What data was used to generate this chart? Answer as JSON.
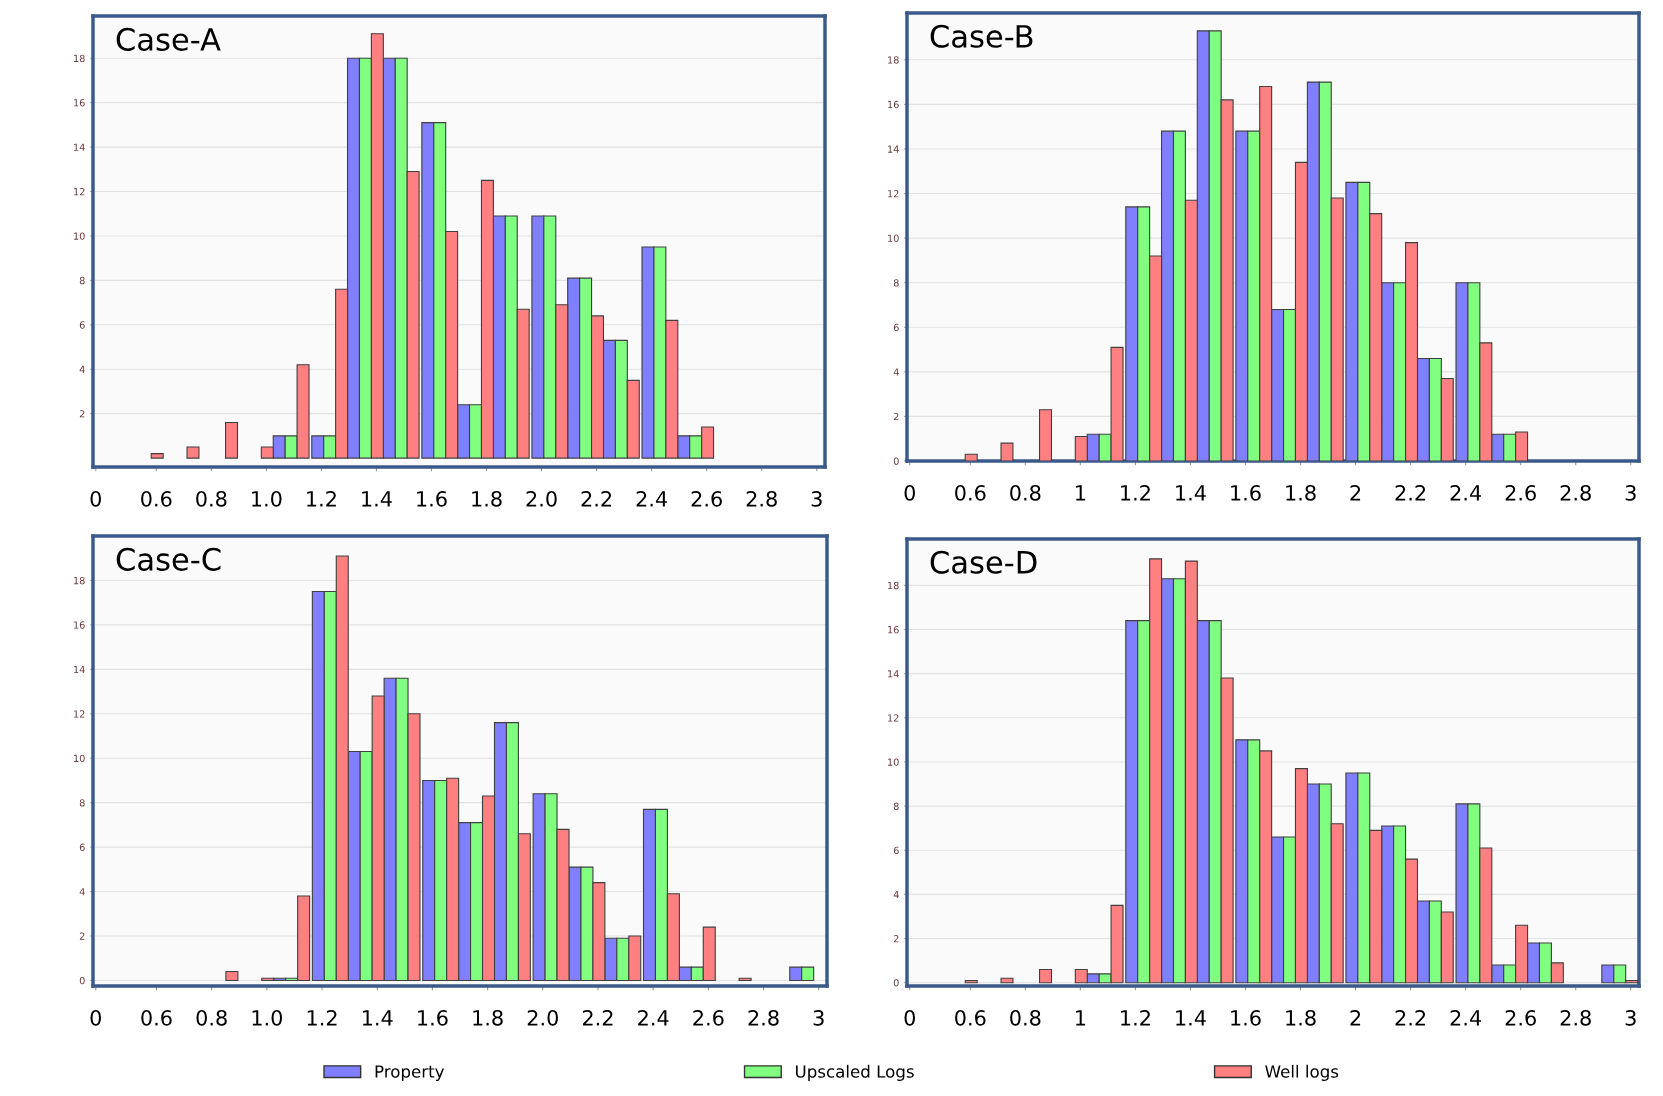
{
  "chart_data": [
    {
      "type": "bar",
      "title": "Case-A",
      "x": [
        0.56,
        0.69,
        0.83,
        0.96,
        1.09,
        1.23,
        1.36,
        1.49,
        1.63,
        1.76,
        1.89,
        2.03,
        2.16,
        2.29,
        2.43,
        2.56
      ],
      "xlim": [
        0.37,
        3.03
      ],
      "xticks": [
        {
          "value": 0.38,
          "label": "0"
        },
        {
          "value": 0.6,
          "label": "0.6"
        },
        {
          "value": 0.8,
          "label": "0.8"
        },
        {
          "value": 1.0,
          "label": "1.0"
        },
        {
          "value": 1.2,
          "label": "1.2"
        },
        {
          "value": 1.4,
          "label": "1.4"
        },
        {
          "value": 1.6,
          "label": "1.6"
        },
        {
          "value": 1.8,
          "label": "1.8"
        },
        {
          "value": 2.0,
          "label": "2.0"
        },
        {
          "value": 2.2,
          "label": "2.2"
        },
        {
          "value": 2.4,
          "label": "2.4"
        },
        {
          "value": 2.6,
          "label": "2.6"
        },
        {
          "value": 2.8,
          "label": "2.8"
        },
        3
      ],
      "ylim": [
        -0.4,
        19.9
      ],
      "yticks": [
        2,
        4,
        6,
        8,
        10,
        12,
        14,
        16,
        18
      ],
      "grid": "y",
      "legend": "bottom",
      "series": [
        {
          "name": "Property",
          "color": "#7f7fff",
          "values": [
            null,
            null,
            null,
            null,
            1.0,
            1.0,
            18,
            18,
            15.1,
            2.4,
            10.9,
            10.9,
            8.1,
            5.3,
            9.5,
            1.0
          ]
        },
        {
          "name": "Upscaled Logs",
          "color": "#80ff80",
          "values": [
            null,
            null,
            null,
            null,
            1.0,
            1.0,
            18,
            18,
            15.1,
            2.4,
            10.9,
            10.9,
            8.1,
            5.3,
            9.5,
            1.0
          ]
        },
        {
          "name": "Well logs",
          "color": "#ff8080",
          "values": [
            0.2,
            0.5,
            1.6,
            0.5,
            4.2,
            7.6,
            19.1,
            12.9,
            10.2,
            12.5,
            6.7,
            6.9,
            6.4,
            3.5,
            6.2,
            1.4
          ]
        }
      ]
    },
    {
      "type": "bar",
      "title": "Case-B",
      "x": [
        0.56,
        0.69,
        0.83,
        0.96,
        1.09,
        1.23,
        1.36,
        1.49,
        1.63,
        1.76,
        1.89,
        2.03,
        2.16,
        2.29,
        2.43,
        2.56
      ],
      "xlim": [
        0.37,
        3.03
      ],
      "xticks": [
        {
          "value": 0.38,
          "label": "0"
        },
        {
          "value": 0.6,
          "label": "0.6"
        },
        {
          "value": 0.8,
          "label": "0.8"
        },
        1,
        {
          "value": 1.2,
          "label": "1.2"
        },
        {
          "value": 1.4,
          "label": "1.4"
        },
        {
          "value": 1.6,
          "label": "1.6"
        },
        {
          "value": 1.8,
          "label": "1.8"
        },
        2,
        {
          "value": 2.2,
          "label": "2.2"
        },
        {
          "value": 2.4,
          "label": "2.4"
        },
        {
          "value": 2.6,
          "label": "2.6"
        },
        {
          "value": 2.8,
          "label": "2.8"
        },
        3
      ],
      "ylim": [
        0,
        20.1
      ],
      "yticks": [
        0,
        2,
        4,
        6,
        8,
        10,
        12,
        14,
        16,
        18
      ],
      "grid": "y",
      "series": [
        {
          "color": "#7f7fff",
          "values": [
            null,
            null,
            null,
            null,
            1.2,
            11.4,
            14.8,
            19.3,
            14.8,
            6.8,
            17.0,
            12.5,
            8.0,
            4.6,
            8.0,
            1.2
          ]
        },
        {
          "color": "#80ff80",
          "values": [
            null,
            null,
            null,
            null,
            1.2,
            11.4,
            14.8,
            19.3,
            14.8,
            6.8,
            17.0,
            12.5,
            8.0,
            4.6,
            8.0,
            1.2
          ]
        },
        {
          "color": "#ff8080",
          "values": [
            0.3,
            0.8,
            2.3,
            1.1,
            5.1,
            9.2,
            11.7,
            16.2,
            16.8,
            13.4,
            11.8,
            11.1,
            9.8,
            3.7,
            5.3,
            1.3
          ]
        }
      ]
    },
    {
      "type": "bar",
      "title": "Case-C",
      "x": [
        0.83,
        0.96,
        1.09,
        1.23,
        1.36,
        1.49,
        1.63,
        1.76,
        1.89,
        2.03,
        2.16,
        2.29,
        2.43,
        2.56,
        2.69,
        2.96
      ],
      "xlim": [
        0.37,
        3.03
      ],
      "xticks": [
        {
          "value": 0.38,
          "label": "0"
        },
        {
          "value": 0.6,
          "label": "0.6"
        },
        {
          "value": 0.8,
          "label": "0.8"
        },
        {
          "value": 1.0,
          "label": "1.0"
        },
        {
          "value": 1.2,
          "label": "1.2"
        },
        {
          "value": 1.4,
          "label": "1.4"
        },
        {
          "value": 1.6,
          "label": "1.6"
        },
        {
          "value": 1.8,
          "label": "1.8"
        },
        {
          "value": 2.0,
          "label": "2.0"
        },
        {
          "value": 2.2,
          "label": "2.2"
        },
        {
          "value": 2.4,
          "label": "2.4"
        },
        {
          "value": 2.6,
          "label": "2.6"
        },
        {
          "value": 2.8,
          "label": "2.8"
        },
        3
      ],
      "ylim": [
        -0.25,
        20.0
      ],
      "yticks": [
        0,
        2,
        4,
        6,
        8,
        10,
        12,
        14,
        16,
        18
      ],
      "grid": "y",
      "series": [
        {
          "color": "#7f7fff",
          "values": [
            null,
            null,
            0.1,
            17.5,
            10.3,
            13.6,
            9.0,
            7.1,
            11.6,
            8.4,
            5.1,
            1.9,
            7.7,
            0.6,
            null,
            0.6
          ]
        },
        {
          "color": "#80ff80",
          "values": [
            null,
            null,
            0.1,
            17.5,
            10.3,
            13.6,
            9.0,
            7.1,
            11.6,
            8.4,
            5.1,
            1.9,
            7.7,
            0.6,
            null,
            0.6
          ]
        },
        {
          "color": "#ff8080",
          "values": [
            0.4,
            0.1,
            3.8,
            19.1,
            12.8,
            12.0,
            9.1,
            8.3,
            6.6,
            6.8,
            4.4,
            2.0,
            3.9,
            2.4,
            0.1,
            null
          ]
        }
      ]
    },
    {
      "type": "bar",
      "title": "Case-D",
      "x": [
        0.56,
        0.69,
        0.83,
        0.96,
        1.09,
        1.23,
        1.36,
        1.49,
        1.63,
        1.76,
        1.89,
        2.03,
        2.16,
        2.29,
        2.43,
        2.56,
        2.69,
        2.96
      ],
      "xlim": [
        0.37,
        3.03
      ],
      "xticks": [
        {
          "value": 0.38,
          "label": "0"
        },
        {
          "value": 0.6,
          "label": "0.6"
        },
        {
          "value": 0.8,
          "label": "0.8"
        },
        1,
        {
          "value": 1.2,
          "label": "1.2"
        },
        {
          "value": 1.4,
          "label": "1.4"
        },
        {
          "value": 1.6,
          "label": "1.6"
        },
        {
          "value": 1.8,
          "label": "1.8"
        },
        2,
        {
          "value": 2.2,
          "label": "2.2"
        },
        {
          "value": 2.4,
          "label": "2.4"
        },
        {
          "value": 2.6,
          "label": "2.6"
        },
        {
          "value": 2.8,
          "label": "2.8"
        },
        3
      ],
      "ylim": [
        -0.15,
        20.1
      ],
      "yticks": [
        0,
        2,
        4,
        6,
        8,
        10,
        12,
        14,
        16,
        18
      ],
      "grid": "y",
      "series": [
        {
          "color": "#7f7fff",
          "values": [
            null,
            null,
            null,
            null,
            0.4,
            16.4,
            18.3,
            16.4,
            11.0,
            6.6,
            9.0,
            9.5,
            7.1,
            3.7,
            8.1,
            0.8,
            1.8,
            0.8
          ]
        },
        {
          "color": "#80ff80",
          "values": [
            null,
            null,
            null,
            null,
            0.4,
            16.4,
            18.3,
            16.4,
            11.0,
            6.6,
            9.0,
            9.5,
            7.1,
            3.7,
            8.1,
            0.8,
            1.8,
            0.8
          ]
        },
        {
          "color": "#ff8080",
          "values": [
            0.1,
            0.2,
            0.6,
            0.6,
            3.5,
            19.2,
            19.1,
            13.8,
            10.5,
            9.7,
            7.2,
            6.9,
            5.6,
            3.2,
            6.1,
            2.6,
            0.9,
            0.1
          ]
        }
      ]
    }
  ]
}
